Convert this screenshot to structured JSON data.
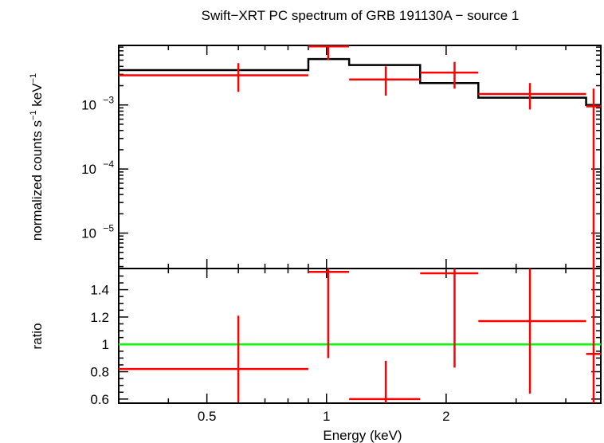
{
  "chart_data": {
    "type": "step-spectrum",
    "title": "Swift−XRT PC spectrum of GRB 191130A − source 1",
    "xlabel": "Energy (keV)",
    "x_scale": "log",
    "xlim": [
      0.3,
      4.9
    ],
    "x_ticks": [
      0.5,
      1,
      2
    ],
    "x_ticks_labels": [
      "0.5",
      "1",
      "2"
    ],
    "top_panel": {
      "ylabel_main": "normalized counts s",
      "ylabel_sup1": "−1",
      "ylabel_mid": " keV",
      "ylabel_sup2": "−1",
      "y_scale": "log",
      "ylim": [
        2.8e-06,
        0.0085
      ],
      "y_tick_base": "10",
      "y_ticks": [
        {
          "value": 0.001,
          "exp": "−3"
        },
        {
          "value": 0.0001,
          "exp": "−4"
        },
        {
          "value": 1e-05,
          "exp": "−5"
        }
      ],
      "data": [
        {
          "x_lo": 0.3,
          "x_hi": 0.9,
          "x": 0.6,
          "y": 0.0029,
          "y_lo": 0.0016,
          "y_hi": 0.0045
        },
        {
          "x_lo": 0.9,
          "x_hi": 1.14,
          "x": 1.01,
          "y": 0.0082,
          "y_lo": 0.005,
          "y_hi": 0.0085
        },
        {
          "x_lo": 1.14,
          "x_hi": 1.72,
          "x": 1.41,
          "y": 0.0025,
          "y_lo": 0.0014,
          "y_hi": 0.004
        },
        {
          "x_lo": 1.72,
          "x_hi": 2.41,
          "x": 2.1,
          "y": 0.0032,
          "y_lo": 0.0018,
          "y_hi": 0.0047
        },
        {
          "x_lo": 2.41,
          "x_hi": 4.5,
          "x": 3.25,
          "y": 0.00148,
          "y_lo": 0.00085,
          "y_hi": 0.0022
        },
        {
          "x_lo": 4.5,
          "x_hi": 4.9,
          "x": 4.7,
          "y": 0.00095,
          "y_lo": 2.8e-06,
          "y_hi": 0.0018
        }
      ],
      "model_steps": [
        {
          "x_lo": 0.3,
          "x_hi": 0.9,
          "y": 0.0035
        },
        {
          "x_lo": 0.9,
          "x_hi": 1.14,
          "y": 0.0052
        },
        {
          "x_lo": 1.14,
          "x_hi": 1.72,
          "y": 0.0042
        },
        {
          "x_lo": 1.72,
          "x_hi": 2.41,
          "y": 0.0022
        },
        {
          "x_lo": 2.41,
          "x_hi": 4.5,
          "y": 0.0013
        },
        {
          "x_lo": 4.5,
          "x_hi": 4.9,
          "y": 0.001
        }
      ]
    },
    "bottom_panel": {
      "ylabel": "ratio",
      "y_scale": "linear",
      "ylim": [
        0.57,
        1.555
      ],
      "y_ticks": [
        0.6,
        0.8,
        1,
        1.2,
        1.4
      ],
      "y_ticks_labels": [
        "0.6",
        "0.8",
        "1",
        "1.2",
        "1.4"
      ],
      "reference_line": 1,
      "data": [
        {
          "x_lo": 0.3,
          "x_hi": 0.9,
          "x": 0.6,
          "y": 0.82,
          "y_lo": 0.58,
          "y_hi": 1.21
        },
        {
          "x_lo": 0.9,
          "x_hi": 1.14,
          "x": 1.01,
          "y": 1.53,
          "y_lo": 0.9,
          "y_hi": 1.555
        },
        {
          "x_lo": 1.14,
          "x_hi": 1.72,
          "x": 1.41,
          "y": 0.6,
          "y_lo": 0.57,
          "y_hi": 0.88
        },
        {
          "x_lo": 1.72,
          "x_hi": 2.41,
          "x": 2.1,
          "y": 1.52,
          "y_lo": 0.83,
          "y_hi": 1.555
        },
        {
          "x_lo": 2.41,
          "x_hi": 4.5,
          "x": 3.25,
          "y": 1.17,
          "y_lo": 0.64,
          "y_hi": 1.555
        },
        {
          "x_lo": 4.5,
          "x_hi": 4.9,
          "x": 4.7,
          "y": 0.93,
          "y_lo": 0.57,
          "y_hi": 1.555
        }
      ]
    },
    "colors": {
      "data": "#ff0000",
      "model": "#000000",
      "reference": "#00ff00",
      "axes": "#000000",
      "background": "#ffffff"
    }
  }
}
